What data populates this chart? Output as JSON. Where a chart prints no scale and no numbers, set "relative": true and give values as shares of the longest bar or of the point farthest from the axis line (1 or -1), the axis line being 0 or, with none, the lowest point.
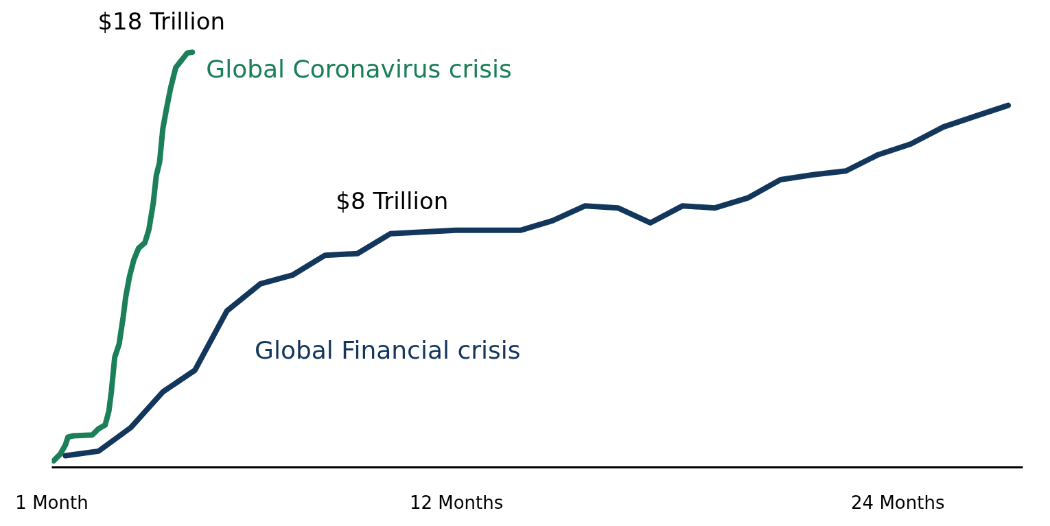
{
  "chart_data": {
    "type": "line",
    "relative": true,
    "xlim": [
      1,
      27.4
    ],
    "xticks": [
      {
        "value": 1,
        "label": "1 Month"
      },
      {
        "value": 12,
        "label": "12 Months"
      },
      {
        "value": 24,
        "label": "24 Months"
      }
    ],
    "grid": false,
    "tick_labels": "x",
    "series": [
      {
        "name": "Global Coronavirus crisis",
        "color": "#1b7f5a",
        "x": [
          1.05,
          1.23,
          1.37,
          1.44,
          1.58,
          2.1,
          2.27,
          2.45,
          2.55,
          2.62,
          2.71,
          2.83,
          2.94,
          3.01,
          3.11,
          3.23,
          3.36,
          3.53,
          3.64,
          3.76,
          3.84,
          3.93,
          4.02,
          4.12,
          4.23,
          4.37,
          4.54,
          4.68,
          4.82
        ],
        "values": [
          0.016,
          0.032,
          0.054,
          0.073,
          0.076,
          0.078,
          0.093,
          0.102,
          0.135,
          0.183,
          0.265,
          0.297,
          0.362,
          0.411,
          0.459,
          0.5,
          0.528,
          0.541,
          0.573,
          0.638,
          0.703,
          0.735,
          0.817,
          0.865,
          0.914,
          0.963,
          0.982,
          0.998,
          1.0
        ]
      },
      {
        "name": "Global Financial crisis",
        "color": "#13375c",
        "x": [
          1.37,
          2.27,
          3.15,
          4.02,
          4.89,
          5.76,
          6.67,
          7.54,
          8.43,
          9.31,
          10.21,
          11.09,
          11.98,
          12.87,
          13.74,
          14.61,
          15.5,
          16.39,
          17.27,
          18.15,
          19.03,
          19.92,
          20.81,
          21.7,
          22.59,
          23.46,
          24.35,
          25.24,
          26.11,
          27.0
        ],
        "values": [
          0.028,
          0.039,
          0.096,
          0.182,
          0.234,
          0.377,
          0.442,
          0.463,
          0.511,
          0.515,
          0.563,
          0.567,
          0.571,
          0.571,
          0.571,
          0.594,
          0.63,
          0.625,
          0.589,
          0.63,
          0.625,
          0.649,
          0.693,
          0.705,
          0.714,
          0.753,
          0.779,
          0.82,
          0.846,
          0.872
        ]
      }
    ],
    "annotations": [
      {
        "text": "$18 Trillion",
        "x": 4.82,
        "y": 1.0
      },
      {
        "text": "$8 Trillion",
        "x": 11.09,
        "y": 0.567
      }
    ]
  }
}
